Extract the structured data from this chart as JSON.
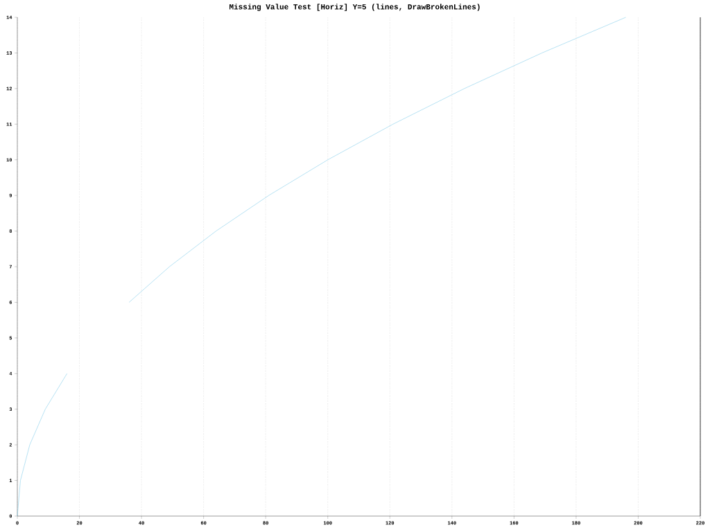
{
  "chart_data": {
    "type": "line",
    "title": "Missing Value Test [Horiz] Y=5 (lines, DrawBrokenLines)",
    "orientation": "horizontal",
    "categories": [
      "14",
      "13",
      "12",
      "11",
      "10",
      "9",
      "8",
      "7",
      "6",
      "5",
      "4",
      "3",
      "2",
      "1",
      "0"
    ],
    "values": [
      196,
      169,
      144,
      121,
      100,
      81,
      64,
      49,
      36,
      null,
      16,
      9,
      4,
      1,
      0
    ],
    "color": "#87ceeb",
    "xlim": [
      0,
      220
    ],
    "xticks": [
      0,
      20,
      40,
      60,
      80,
      100,
      120,
      140,
      160,
      180,
      200,
      220
    ],
    "grid": "x",
    "line_style": "solid",
    "marker": "none"
  }
}
